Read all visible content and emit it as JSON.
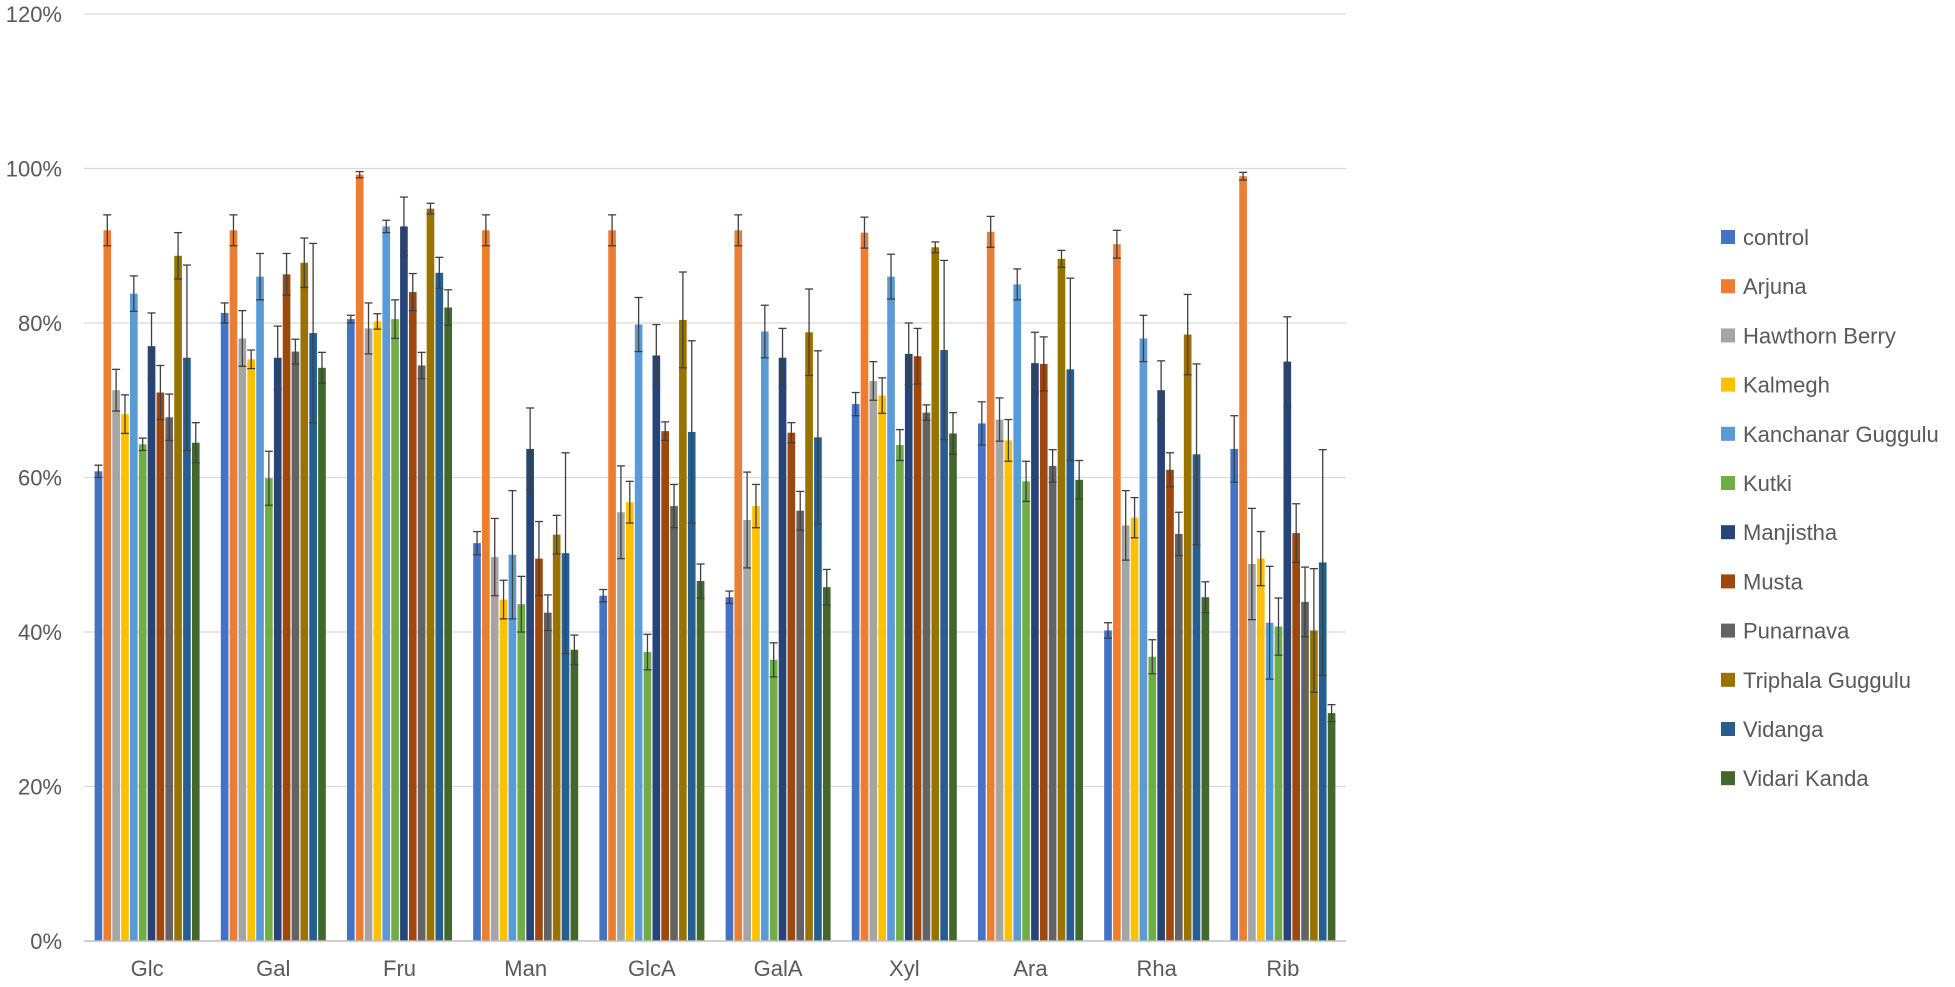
{
  "chart_data": {
    "type": "bar",
    "categories": [
      "Glc",
      "Gal",
      "Fru",
      "Man",
      "GlcA",
      "GalA",
      "Xyl",
      "Ara",
      "Rha",
      "Rib"
    ],
    "ylim": [
      0,
      120
    ],
    "yticks": [
      "0%",
      "20%",
      "40%",
      "60%",
      "80%",
      "100%",
      "120%"
    ],
    "grid": true,
    "legend_position": "right",
    "series": [
      {
        "name": "control",
        "color": "#4472C4",
        "values": [
          60.8,
          81.3,
          80.5,
          51.5,
          44.7,
          44.5,
          69.5,
          67.0,
          40.2,
          63.7
        ],
        "errors": [
          0.8,
          1.3,
          0.5,
          1.5,
          0.8,
          0.8,
          1.5,
          2.8,
          1.0,
          4.3
        ]
      },
      {
        "name": "Arjuna",
        "color": "#ED7D31",
        "values": [
          92.0,
          92.0,
          99.2,
          92.0,
          92.0,
          92.0,
          91.7,
          91.8,
          90.2,
          99.0
        ],
        "errors": [
          2.0,
          2.0,
          0.4,
          2.0,
          2.0,
          2.0,
          2.0,
          2.0,
          1.8,
          0.5
        ]
      },
      {
        "name": "Hawthorn Berry",
        "color": "#A5A5A5",
        "values": [
          71.3,
          78.0,
          79.3,
          49.7,
          55.5,
          54.5,
          72.5,
          67.5,
          53.8,
          48.8
        ],
        "errors": [
          2.7,
          3.6,
          3.3,
          5.0,
          6.0,
          6.2,
          2.5,
          2.8,
          4.5,
          7.2
        ]
      },
      {
        "name": "Kalmegh",
        "color": "#FFC000",
        "values": [
          68.2,
          75.3,
          80.2,
          44.2,
          56.8,
          56.3,
          70.6,
          64.8,
          54.8,
          49.5
        ],
        "errors": [
          2.5,
          1.2,
          1.0,
          2.5,
          2.7,
          2.8,
          2.3,
          2.7,
          2.6,
          3.5
        ]
      },
      {
        "name": "Kanchanar Guggulu",
        "color": "#5B9BD5",
        "values": [
          83.8,
          86.0,
          92.5,
          50.0,
          79.8,
          78.9,
          86.0,
          85.0,
          78.0,
          41.2
        ],
        "errors": [
          2.3,
          3.0,
          0.8,
          8.3,
          3.5,
          3.4,
          2.9,
          2.0,
          3.0,
          7.3
        ]
      },
      {
        "name": "Kutki",
        "color": "#70AD47",
        "values": [
          64.3,
          59.9,
          80.5,
          43.6,
          37.4,
          36.4,
          64.2,
          59.5,
          36.8,
          40.7
        ],
        "errors": [
          0.8,
          3.5,
          2.5,
          3.6,
          2.3,
          2.2,
          2.0,
          2.6,
          2.2,
          3.7
        ]
      },
      {
        "name": "Manjistha",
        "color": "#264478",
        "values": [
          77.0,
          75.5,
          92.5,
          63.7,
          75.8,
          75.5,
          76.0,
          74.8,
          71.3,
          75.0
        ],
        "errors": [
          4.3,
          4.1,
          3.8,
          5.3,
          4.0,
          3.8,
          4.0,
          4.0,
          3.8,
          5.8
        ]
      },
      {
        "name": "Musta",
        "color": "#9E480E",
        "values": [
          71.0,
          86.3,
          84.0,
          49.5,
          66.0,
          65.8,
          75.7,
          74.7,
          61.0,
          52.8
        ],
        "errors": [
          3.5,
          2.7,
          2.4,
          4.8,
          1.2,
          1.3,
          3.6,
          3.5,
          2.2,
          3.8
        ]
      },
      {
        "name": "Punarnava",
        "color": "#636363",
        "values": [
          67.8,
          76.3,
          74.5,
          42.5,
          56.3,
          55.7,
          68.4,
          61.5,
          52.7,
          43.9
        ],
        "errors": [
          3.0,
          1.6,
          1.7,
          2.3,
          2.8,
          2.5,
          1.0,
          2.1,
          2.8,
          4.5
        ]
      },
      {
        "name": "Triphala Guggulu",
        "color": "#997300",
        "values": [
          88.7,
          87.8,
          94.8,
          52.6,
          80.4,
          78.8,
          89.8,
          88.3,
          78.5,
          40.2
        ],
        "errors": [
          3.0,
          3.2,
          0.7,
          2.5,
          6.2,
          5.6,
          0.7,
          1.1,
          5.2,
          8.0
        ]
      },
      {
        "name": "Vidanga",
        "color": "#255E91",
        "values": [
          75.5,
          78.7,
          86.5,
          50.2,
          65.9,
          65.2,
          76.5,
          74.0,
          63.0,
          49.0
        ],
        "errors": [
          12.0,
          11.6,
          2.0,
          13.0,
          11.8,
          11.2,
          11.6,
          11.8,
          11.7,
          14.6
        ]
      },
      {
        "name": "Vidari Kanda",
        "color": "#43682B",
        "values": [
          64.5,
          74.2,
          82.0,
          37.7,
          46.6,
          45.8,
          65.7,
          59.7,
          44.5,
          29.5
        ],
        "errors": [
          2.6,
          2.0,
          2.3,
          1.9,
          2.2,
          2.3,
          2.7,
          2.5,
          2.0,
          1.1
        ]
      }
    ]
  }
}
